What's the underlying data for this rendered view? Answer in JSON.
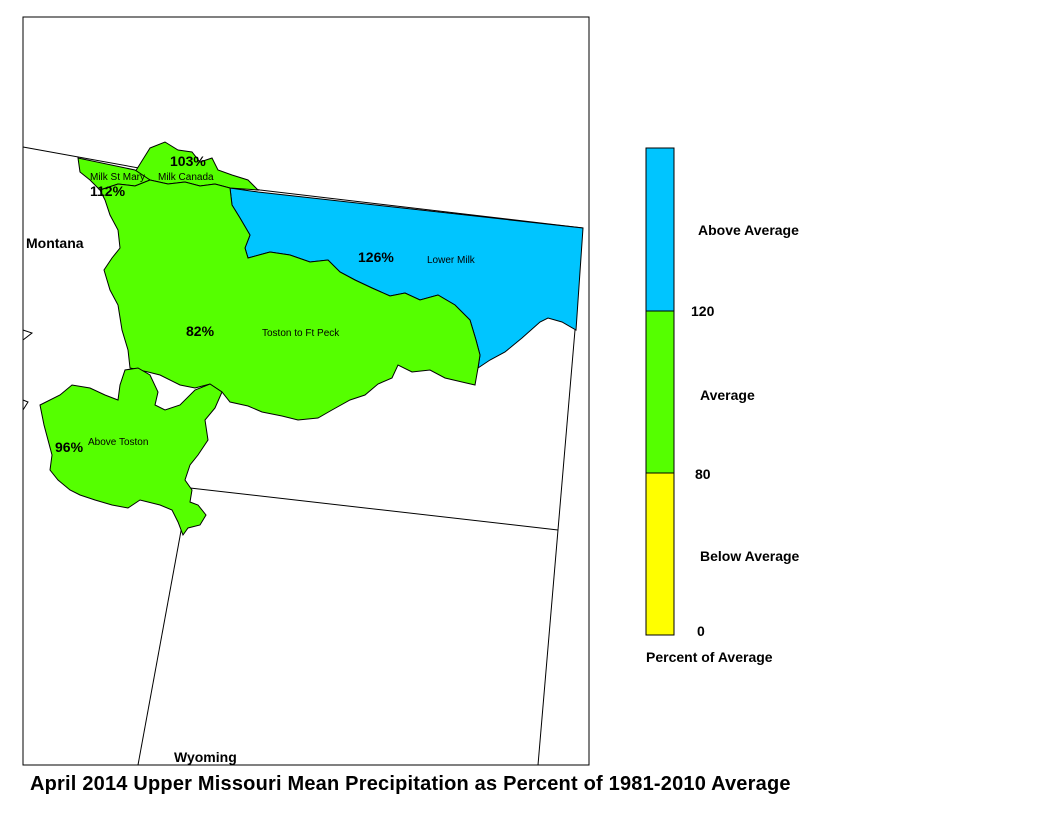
{
  "title": "April 2014 Upper Missouri Mean Precipitation as Percent of 1981-2010 Average",
  "states": {
    "montana": "Montana",
    "wyoming": "Wyoming"
  },
  "basins": [
    {
      "name": "Milk St Mary",
      "name2": "Milk Canada",
      "percent": "103%",
      "category": "average",
      "color": "#55ff00"
    },
    {
      "name": "",
      "percent": "112%",
      "category": "average",
      "color": "#55ff00"
    },
    {
      "name": "Lower Milk",
      "percent": "126%",
      "category": "above",
      "color": "#00c5ff"
    },
    {
      "name": "Toston to Ft Peck",
      "percent": "82%",
      "category": "average",
      "color": "#55ff00"
    },
    {
      "name": "Above Toston",
      "percent": "96%",
      "category": "average",
      "color": "#55ff00"
    }
  ],
  "legend": {
    "title": "Percent of Average",
    "classes": [
      {
        "label": "Above Average",
        "color": "#00c5ff"
      },
      {
        "label": "Average",
        "color": "#55ff00"
      },
      {
        "label": "Below Average",
        "color": "#ffff00"
      }
    ],
    "breaks": [
      "120",
      "80",
      "0"
    ]
  }
}
